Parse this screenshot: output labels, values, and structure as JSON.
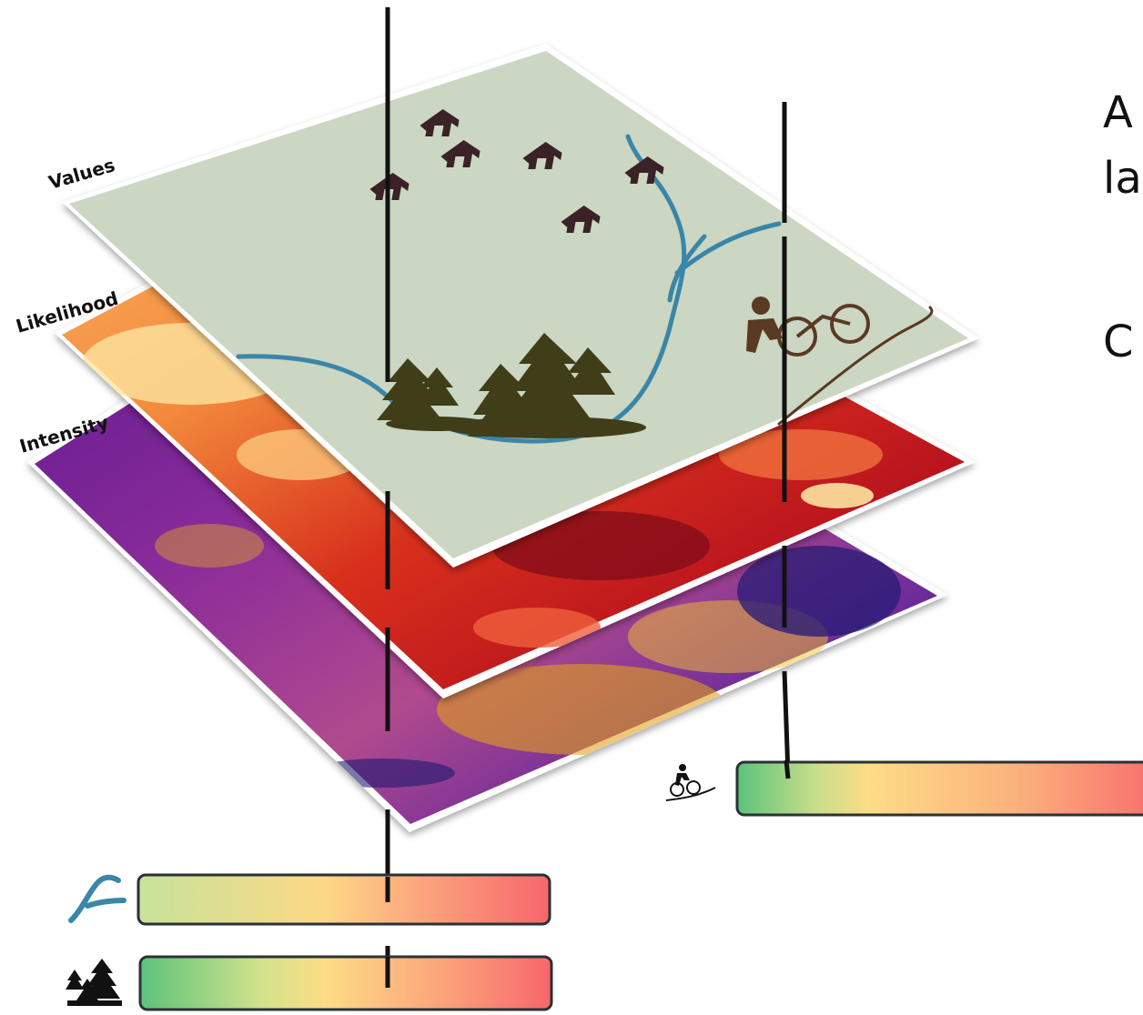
{
  "layers": [
    {
      "name": "values",
      "label": "Values"
    },
    {
      "name": "likelihood",
      "label": "Likelihood"
    },
    {
      "name": "intensity",
      "label": "Intensity"
    }
  ],
  "side_text": {
    "line1": "A",
    "line2": "la",
    "line3": "C"
  },
  "icons": {
    "house": "house-icon",
    "river": "river-icon",
    "forest": "forest-icon",
    "bike": "mountain-bike-icon"
  },
  "colors": {
    "values_map": "#cbd6c3",
    "river": "#3a86a8",
    "house": "#3a2226",
    "forest": "#3f3e18",
    "trail": "#5a3a22",
    "gradient_green": "#5cc27a",
    "gradient_yellow": "#fddc86",
    "gradient_red": "#f7666c"
  },
  "bars": [
    {
      "name": "river-value-bar",
      "icon": "river-icon"
    },
    {
      "name": "forest-value-bar",
      "icon": "forest-icon"
    },
    {
      "name": "bike-value-bar",
      "icon": "mountain-bike-icon"
    }
  ]
}
